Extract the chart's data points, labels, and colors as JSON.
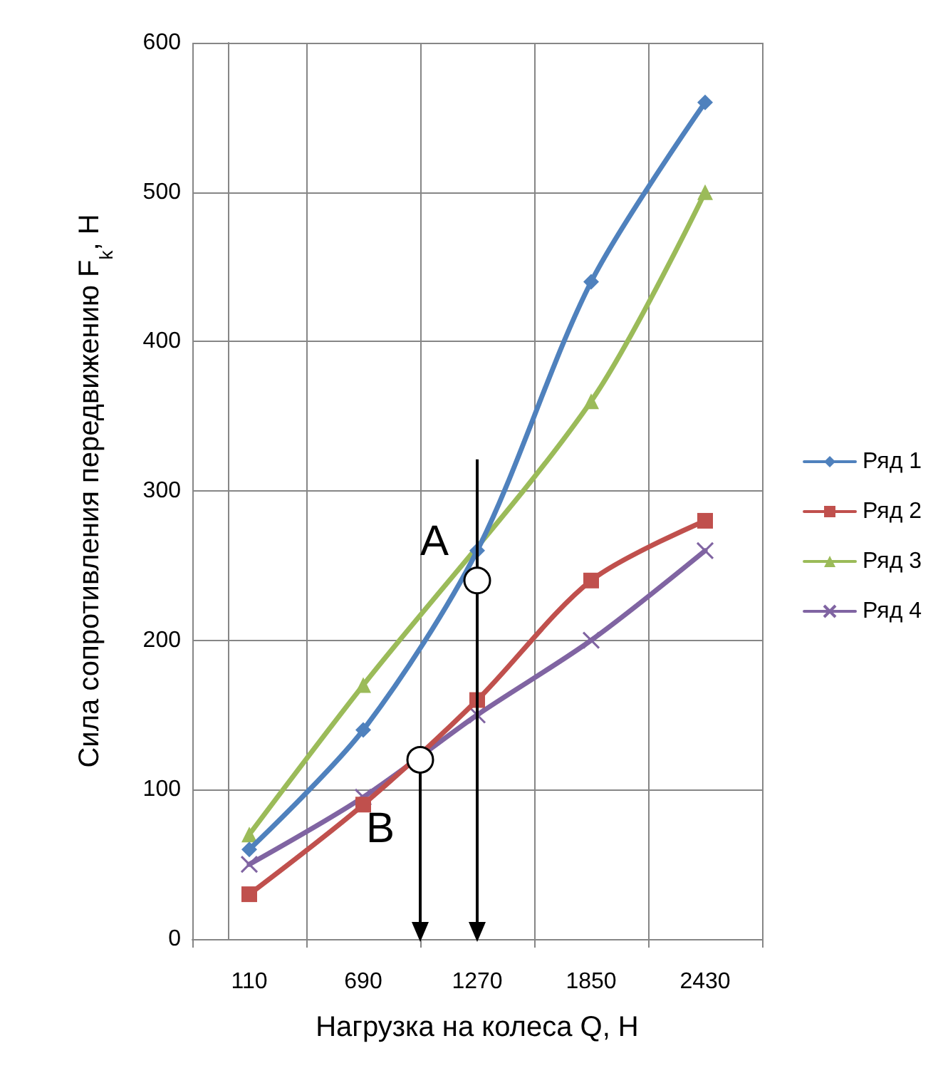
{
  "chart_data": {
    "type": "line",
    "xlabel": "Нагрузка на колеса Q, Н",
    "ylabel": "Сила сопротивления передвижению F$_{k}$, Н",
    "x": [
      110,
      690,
      1270,
      1850,
      2430
    ],
    "xlim": [
      -180,
      2720
    ],
    "xticks": [
      {
        "value": -180,
        "label": null
      },
      110,
      {
        "value": 400,
        "label": null
      },
      690,
      {
        "value": 980,
        "label": null
      },
      1270,
      {
        "value": 1560,
        "label": null
      },
      1850,
      {
        "value": 2140,
        "label": null
      },
      2430,
      {
        "value": 2720,
        "label": null
      }
    ],
    "ylim": [
      0,
      600
    ],
    "yticks": [
      0,
      100,
      200,
      300,
      400,
      500,
      600
    ],
    "grid": true,
    "legend": "right",
    "series": [
      {
        "name": "Ряд 1",
        "color": "#4f81bd",
        "marker": "diamond",
        "values": [
          60,
          140,
          260,
          440,
          560
        ]
      },
      {
        "name": "Ряд 2",
        "color": "#c0504d",
        "marker": "square",
        "values": [
          30,
          90,
          160,
          240,
          280
        ]
      },
      {
        "name": "Ряд 3",
        "color": "#9bbb59",
        "marker": "triangle",
        "values": [
          70,
          170,
          null,
          360,
          500
        ]
      },
      {
        "name": "Ряд 4",
        "color": "#8064a2",
        "marker": "cross",
        "values": [
          50,
          95,
          150,
          200,
          260
        ]
      }
    ],
    "annotations": [
      {
        "text": "A",
        "x": 1270,
        "y": 240
      },
      {
        "text": "B",
        "x": 980,
        "y": 120
      }
    ]
  }
}
